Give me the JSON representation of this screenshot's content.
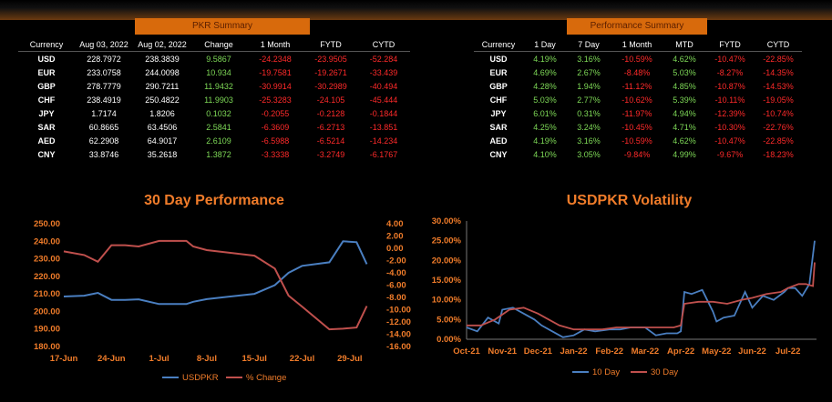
{
  "pkr_summary": {
    "title": "PKR Summary",
    "headers": [
      "Currency",
      "Aug 03, 2022",
      "Aug 02, 2022",
      "Change",
      "1 Month",
      "FYTD",
      "CYTD"
    ],
    "rows": [
      [
        "USD",
        "228.7972",
        "238.3839",
        "9.5867",
        "-24.2348",
        "-23.9505",
        "-52.284"
      ],
      [
        "EUR",
        "233.0758",
        "244.0098",
        "10.934",
        "-19.7581",
        "-19.2671",
        "-33.439"
      ],
      [
        "GBP",
        "278.7779",
        "290.7211",
        "11.9432",
        "-30.9914",
        "-30.2989",
        "-40.494"
      ],
      [
        "CHF",
        "238.4919",
        "250.4822",
        "11.9903",
        "-25.3283",
        "-24.105",
        "-45.444"
      ],
      [
        "JPY",
        "1.7174",
        "1.8206",
        "0.1032",
        "-0.2055",
        "-0.2128",
        "-0.1844"
      ],
      [
        "SAR",
        "60.8665",
        "63.4506",
        "2.5841",
        "-6.3609",
        "-6.2713",
        "-13.851"
      ],
      [
        "AED",
        "62.2908",
        "64.9017",
        "2.6109",
        "-6.5988",
        "-6.5214",
        "-14.234"
      ],
      [
        "CNY",
        "33.8746",
        "35.2618",
        "1.3872",
        "-3.3338",
        "-3.2749",
        "-6.1767"
      ]
    ]
  },
  "performance_summary": {
    "title": "Performance Summary",
    "headers": [
      "Currency",
      "1 Day",
      "7 Day",
      "1 Month",
      "MTD",
      "FYTD",
      "CYTD"
    ],
    "rows": [
      [
        "USD",
        "4.19%",
        "3.16%",
        "-10.59%",
        "4.62%",
        "-10.47%",
        "-22.85%"
      ],
      [
        "EUR",
        "4.69%",
        "2.67%",
        "-8.48%",
        "5.03%",
        "-8.27%",
        "-14.35%"
      ],
      [
        "GBP",
        "4.28%",
        "1.94%",
        "-11.12%",
        "4.85%",
        "-10.87%",
        "-14.53%"
      ],
      [
        "CHF",
        "5.03%",
        "2.77%",
        "-10.62%",
        "5.39%",
        "-10.11%",
        "-19.05%"
      ],
      [
        "JPY",
        "6.01%",
        "0.31%",
        "-11.97%",
        "4.94%",
        "-12.39%",
        "-10.74%"
      ],
      [
        "SAR",
        "4.25%",
        "3.24%",
        "-10.45%",
        "4.71%",
        "-10.30%",
        "-22.76%"
      ],
      [
        "AED",
        "4.19%",
        "3.16%",
        "-10.59%",
        "4.62%",
        "-10.47%",
        "-22.85%"
      ],
      [
        "CNY",
        "4.10%",
        "3.05%",
        "-9.84%",
        "4.99%",
        "-9.67%",
        "-18.23%"
      ]
    ]
  },
  "colors": {
    "orange": "#d86a0c",
    "title_orange": "#f07c2a",
    "green": "#7ed957",
    "red": "#ff2a2a",
    "blue": "#4a7fc1",
    "salmon": "#c0504d"
  },
  "chart_data": [
    {
      "type": "line",
      "title": "30 Day Performance",
      "x_tick_labels": [
        "17-Jun",
        "24-Jun",
        "1-Jul",
        "8-Jul",
        "15-Jul",
        "22-Jul",
        "29-Jul"
      ],
      "x_days": [
        0,
        7,
        14,
        21,
        28,
        35,
        42
      ],
      "y_left_ticks": [
        "250.00",
        "240.00",
        "230.00",
        "220.00",
        "210.00",
        "200.00",
        "190.00",
        "180.00"
      ],
      "y_left_range": [
        180,
        250
      ],
      "y_right_ticks": [
        "4.00",
        "2.00",
        "0.00",
        "-2.00",
        "-4.00",
        "-6.00",
        "-8.00",
        "-10.00",
        "-12.00",
        "-14.00",
        "-16.00"
      ],
      "y_right_range": [
        -16,
        4
      ],
      "legend_position": "bottom",
      "series": [
        {
          "name": "USDPKR",
          "axis": "left",
          "x": [
            0,
            3,
            5,
            7,
            9,
            11,
            14,
            18,
            19,
            21,
            28,
            31,
            33,
            35,
            39,
            41,
            43,
            44.5
          ],
          "values": [
            208.5,
            209,
            210.6,
            206.6,
            206.6,
            206.9,
            204.2,
            204.2,
            205.5,
            207,
            210,
            215,
            222,
            226,
            228,
            240,
            239.5,
            227
          ]
        },
        {
          "name": "% Change",
          "axis": "right",
          "x": [
            0,
            3,
            5,
            7,
            9,
            11,
            14,
            18,
            19,
            21,
            28,
            31,
            33,
            35,
            39,
            41,
            43,
            44.5
          ],
          "values": [
            -0.5,
            -1.1,
            -2.2,
            0.5,
            0.5,
            0.3,
            1.2,
            1.2,
            0.3,
            -0.3,
            -1.2,
            -3.3,
            -7.7,
            -9.5,
            -13.2,
            -13.1,
            -12.9,
            -9.4
          ]
        }
      ]
    },
    {
      "type": "line",
      "title": "USDPKR Volatility",
      "x_tick_labels": [
        "Oct-21",
        "Nov-21",
        "Dec-21",
        "Jan-22",
        "Feb-22",
        "Mar-22",
        "Apr-22",
        "May-22",
        "Jun-22",
        "Jul-22"
      ],
      "y_ticks": [
        "30.00%",
        "25.00%",
        "20.00%",
        "15.00%",
        "10.00%",
        "5.00%",
        "0.00%"
      ],
      "y_range": [
        0,
        30
      ],
      "legend_position": "bottom",
      "series": [
        {
          "name": "10 Day",
          "x": [
            0,
            0.3,
            0.6,
            0.9,
            1.0,
            1.3,
            1.6,
            1.9,
            2.1,
            2.4,
            2.7,
            3.0,
            3.3,
            3.6,
            4.0,
            4.3,
            4.6,
            5.0,
            5.3,
            5.6,
            5.9,
            6.0,
            6.1,
            6.3,
            6.6,
            6.9,
            7.0,
            7.2,
            7.5,
            7.8,
            8.0,
            8.3,
            8.6,
            8.9,
            9.0,
            9.2,
            9.4,
            9.6,
            9.75
          ],
          "values": [
            3,
            2,
            5.5,
            4,
            7.5,
            8,
            6.5,
            5,
            3.5,
            2,
            0.5,
            1,
            2.5,
            2,
            2.5,
            2.5,
            3,
            3,
            1,
            1.5,
            1.5,
            2,
            12,
            11.5,
            12.5,
            7,
            4.5,
            5.5,
            6,
            12,
            8,
            11,
            10,
            12,
            13,
            13,
            11,
            14,
            25
          ]
        },
        {
          "name": "30 Day",
          "x": [
            0,
            0.4,
            0.8,
            1.2,
            1.6,
            2.0,
            2.3,
            2.6,
            3.0,
            3.4,
            3.8,
            4.2,
            4.6,
            5.0,
            5.4,
            5.8,
            6.0,
            6.1,
            6.5,
            6.9,
            7.3,
            7.7,
            8.0,
            8.4,
            8.8,
            9.0,
            9.3,
            9.5,
            9.7,
            9.75
          ],
          "values": [
            3.5,
            3.5,
            5,
            7.5,
            8,
            6.5,
            5,
            3.5,
            2.5,
            2.5,
            2.5,
            3,
            3,
            3,
            3,
            3,
            3.5,
            9,
            9.5,
            9.5,
            9,
            10,
            10.5,
            11.5,
            12,
            13,
            14,
            14,
            13.5,
            19.5
          ]
        }
      ]
    }
  ]
}
